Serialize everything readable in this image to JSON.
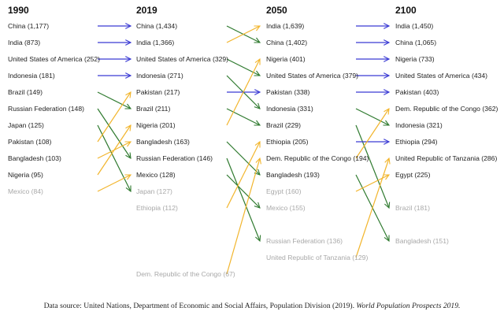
{
  "colors": {
    "same": "#3b3bd4",
    "down": "#2f7a2f",
    "up": "#f2b52c",
    "text": "#222222",
    "faded": "#a8a8a8"
  },
  "columns": [
    {
      "year": "1990",
      "entries": [
        {
          "rank": 1,
          "label": "China (1,177)",
          "next_rank": 1,
          "change": "same"
        },
        {
          "rank": 2,
          "label": "India (873)",
          "next_rank": 2,
          "change": "same"
        },
        {
          "rank": 3,
          "label": "United States of America (252)",
          "next_rank": 3,
          "change": "same"
        },
        {
          "rank": 4,
          "label": "Indonesia (181)",
          "next_rank": 4,
          "change": "same"
        },
        {
          "rank": 5,
          "label": "Brazil (149)",
          "next_rank": 6,
          "change": "down"
        },
        {
          "rank": 6,
          "label": "Russian Federation (148)",
          "next_rank": 9,
          "change": "down"
        },
        {
          "rank": 7,
          "label": "Japan (125)",
          "next_rank": 11,
          "change": "down"
        },
        {
          "rank": 8,
          "label": "Pakistan (108)",
          "next_rank": 5,
          "change": "up"
        },
        {
          "rank": 9,
          "label": "Bangladesh (103)",
          "next_rank": 8,
          "change": "up"
        },
        {
          "rank": 10,
          "label": "Nigeria (95)",
          "next_rank": 7,
          "change": "up"
        },
        {
          "rank": 11,
          "label": "Mexico (84)",
          "next_rank": 10,
          "change": "up",
          "faded": true
        }
      ]
    },
    {
      "year": "2019",
      "entries": [
        {
          "rank": 1,
          "label": "China (1,434)",
          "next_rank": 2,
          "change": "down"
        },
        {
          "rank": 2,
          "label": "India (1,366)",
          "next_rank": 1,
          "change": "up"
        },
        {
          "rank": 3,
          "label": "United States of America (329)",
          "next_rank": 4,
          "change": "down"
        },
        {
          "rank": 4,
          "label": "Indonesia (271)",
          "next_rank": 6,
          "change": "down"
        },
        {
          "rank": 5,
          "label": "Pakistan (217)",
          "next_rank": 5,
          "change": "same"
        },
        {
          "rank": 6,
          "label": "Brazil (211)",
          "next_rank": 7,
          "change": "down"
        },
        {
          "rank": 7,
          "label": "Nigeria (201)",
          "next_rank": 3,
          "change": "up"
        },
        {
          "rank": 8,
          "label": "Bangladesh (163)",
          "next_rank": 10,
          "change": "down"
        },
        {
          "rank": 9,
          "label": "Russian Federation (146)",
          "next_rank": 14,
          "change": "down"
        },
        {
          "rank": 10,
          "label": "Mexico (128)",
          "next_rank": 12,
          "change": "down"
        },
        {
          "rank": 11,
          "label": "Japan (127)",
          "faded": true
        },
        {
          "rank": 12,
          "label": "Ethiopia (112)",
          "next_rank": 8,
          "change": "up",
          "faded": true
        },
        {
          "rank": 16,
          "label": "Dem. Republic of the Congo (67)",
          "next_rank": 9,
          "change": "up",
          "faded": true
        }
      ]
    },
    {
      "year": "2050",
      "entries": [
        {
          "rank": 1,
          "label": "India (1,639)",
          "next_rank": 1,
          "change": "same"
        },
        {
          "rank": 2,
          "label": "China (1,402)",
          "next_rank": 2,
          "change": "same"
        },
        {
          "rank": 3,
          "label": "Nigeria (401)",
          "next_rank": 3,
          "change": "same"
        },
        {
          "rank": 4,
          "label": "United States of America (379)",
          "next_rank": 4,
          "change": "same"
        },
        {
          "rank": 5,
          "label": "Pakistan (338)",
          "next_rank": 5,
          "change": "same"
        },
        {
          "rank": 6,
          "label": "Indonesia (331)",
          "next_rank": 7,
          "change": "down"
        },
        {
          "rank": 7,
          "label": "Brazil (229)",
          "next_rank": 12,
          "change": "down"
        },
        {
          "rank": 8,
          "label": "Ethiopia (205)",
          "next_rank": 8,
          "change": "same"
        },
        {
          "rank": 9,
          "label": "Dem. Republic of the Congo (194)",
          "next_rank": 6,
          "change": "up"
        },
        {
          "rank": 10,
          "label": "Bangladesh (193)",
          "next_rank": 14,
          "change": "down"
        },
        {
          "rank": 11,
          "label": "Egypt (160)",
          "next_rank": 10,
          "change": "up",
          "faded": true
        },
        {
          "rank": 12,
          "label": "Mexico (155)",
          "faded": true
        },
        {
          "rank": 14,
          "label": "Russian Federation (136)",
          "faded": true
        },
        {
          "rank": 15,
          "label": "United Republic of Tanzania (129)",
          "next_rank": 9,
          "change": "up",
          "faded": true
        }
      ]
    },
    {
      "year": "2100",
      "entries": [
        {
          "rank": 1,
          "label": "India (1,450)"
        },
        {
          "rank": 2,
          "label": "China (1,065)"
        },
        {
          "rank": 3,
          "label": "Nigeria (733)"
        },
        {
          "rank": 4,
          "label": "United States of America (434)"
        },
        {
          "rank": 5,
          "label": "Pakistan (403)"
        },
        {
          "rank": 6,
          "label": "Dem. Republic of the Congo (362)"
        },
        {
          "rank": 7,
          "label": "Indonesia (321)"
        },
        {
          "rank": 8,
          "label": "Ethiopia (294)"
        },
        {
          "rank": 9,
          "label": "United Republic of Tanzania (286)"
        },
        {
          "rank": 10,
          "label": "Egypt (225)"
        },
        {
          "rank": 12,
          "label": "Brazil (181)",
          "faded": true
        },
        {
          "rank": 14,
          "label": "Bangladesh (151)",
          "faded": true
        }
      ]
    }
  ],
  "footer": {
    "text": "Data source: United Nations, Department of Economic and Social Affairs, Population Division (2019). ",
    "italic": "World Population Prospects 2019."
  }
}
